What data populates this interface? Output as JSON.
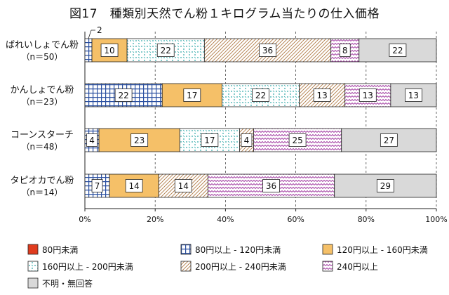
{
  "title": "図17　種類別天然でん粉１キログラム当たりの仕入価格",
  "chart_data": {
    "type": "bar",
    "stacked": true,
    "orientation": "horizontal",
    "title": "図17　種類別天然でん粉１キログラム当たりの仕入価格",
    "categories": [
      {
        "name": "ばれいしょでん粉",
        "n": "（n＝50）"
      },
      {
        "name": "かんしょでん粉",
        "n": "（n＝23）"
      },
      {
        "name": "コーンスターチ",
        "n": "（n＝48）"
      },
      {
        "name": "タピオカでん粉",
        "n": "（n＝14）"
      }
    ],
    "series": [
      {
        "name": "80円未満",
        "values": [
          0,
          0,
          0,
          0
        ],
        "color": "#e03c1e",
        "pattern": "solid"
      },
      {
        "name": "80円以上 - 120円未満",
        "values": [
          2,
          22,
          4,
          7
        ],
        "color": "#2a4fa0",
        "pattern": "grid"
      },
      {
        "name": "120円以上 - 160円未満",
        "values": [
          10,
          17,
          23,
          14
        ],
        "color": "#f5c068",
        "pattern": "solid"
      },
      {
        "name": "160円以上 - 200円未満",
        "values": [
          22,
          22,
          17,
          0
        ],
        "color": "#2aa6a6",
        "pattern": "dots"
      },
      {
        "name": "200円以上 - 240円未満",
        "values": [
          36,
          13,
          4,
          14
        ],
        "color": "#c8996a",
        "pattern": "diag"
      },
      {
        "name": "240円以上",
        "values": [
          8,
          13,
          25,
          36
        ],
        "color": "#a84aa8",
        "pattern": "zigzag"
      },
      {
        "name": "不明・無回答",
        "values": [
          22,
          13,
          27,
          29
        ],
        "color": "#d9d9d9",
        "pattern": "solid"
      }
    ],
    "xlim": [
      0,
      100
    ],
    "x_ticks": [
      "0%",
      "20%",
      "40%",
      "60%",
      "80%",
      "100%"
    ],
    "grid": "vertical-dashed",
    "legend_position": "bottom"
  }
}
